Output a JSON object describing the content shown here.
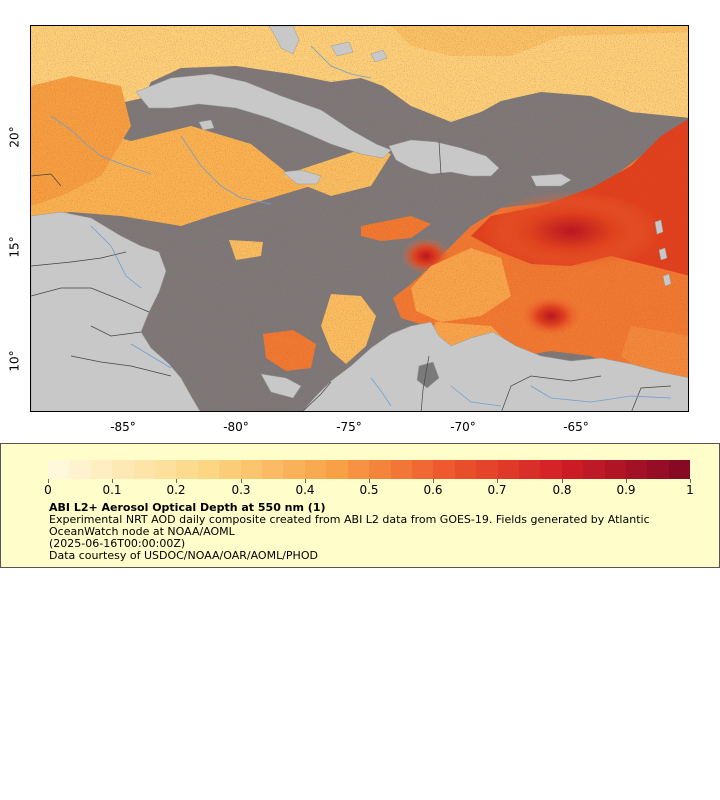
{
  "map": {
    "lon_labels": [
      "-85°",
      "-80°",
      "-75°",
      "-70°",
      "-65°"
    ],
    "lat_labels": [
      "20°",
      "15°",
      "10°"
    ],
    "colors": {
      "no_data": "#7a7a7a",
      "land": "#c8c8c8",
      "low_aod": "#fbd27a",
      "mid_aod": "#f5a040",
      "high_aod": "#e0401c",
      "max_aod": "#8b0a1c",
      "rivers": "#6e9fd4",
      "borders": "#444444"
    }
  },
  "legend": {
    "colorbar_labels": [
      "0",
      "0.1",
      "0.2",
      "0.3",
      "0.4",
      "0.5",
      "0.6",
      "0.7",
      "0.8",
      "0.9",
      "1"
    ],
    "title": "ABI L2+ Aerosol Optical Depth at 550 nm (1)",
    "description": "Experimental NRT AOD daily composite created from ABI L2 data from GOES-19. Fields generated by Atlantic OceanWatch node at NOAA/AOML",
    "time": "(2025-06-16T00:00:00Z)",
    "credit": "Data courtesy of USDOC/NOAA/OAR/AOML/PHOD"
  }
}
